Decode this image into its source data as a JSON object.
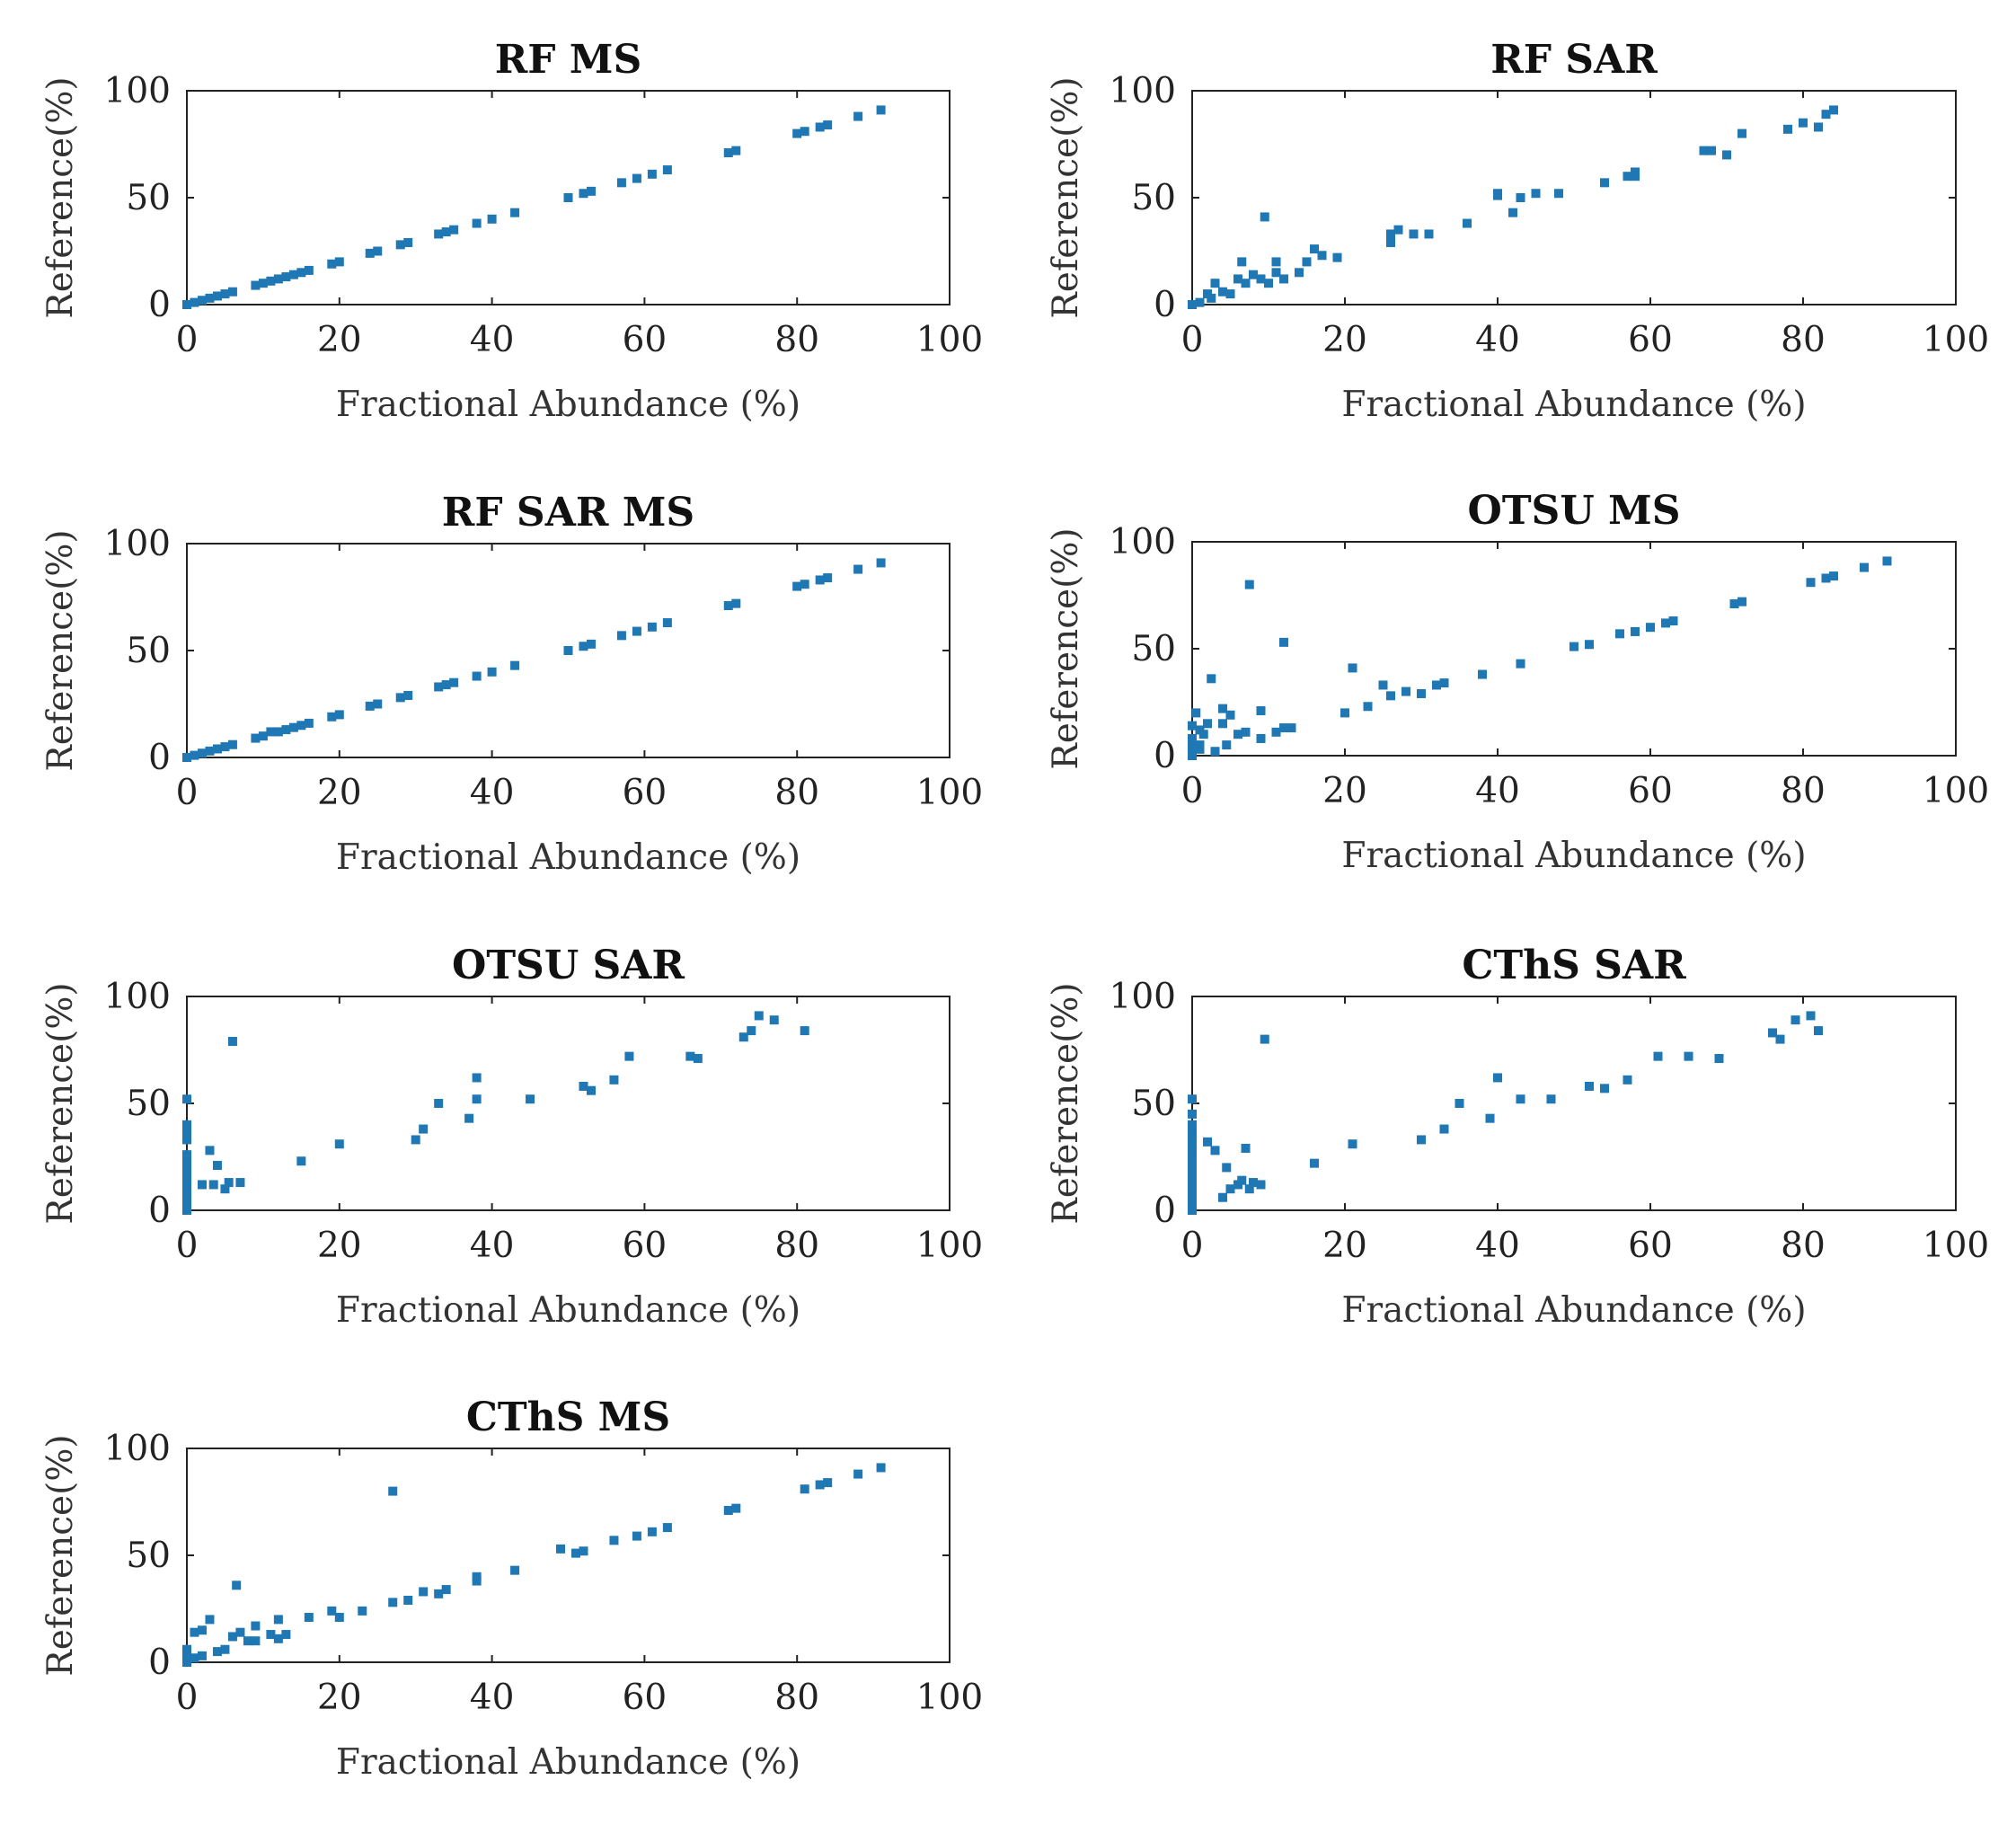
{
  "figure": {
    "marker_color": "#1f77b4"
  },
  "chart_data": [
    {
      "type": "scatter",
      "title": "RF MS",
      "xlabel": "Fractional Abundance (%)",
      "ylabel": "Reference(%)",
      "xlim": [
        0,
        100
      ],
      "ylim": [
        0,
        100
      ],
      "xticks": [
        "0",
        "20",
        "40",
        "60",
        "80",
        "100"
      ],
      "yticks": [
        "0",
        "50",
        "100"
      ],
      "x": [
        0,
        1,
        2,
        3,
        4,
        5,
        6,
        9,
        10,
        11,
        12,
        13,
        14,
        15,
        16,
        19,
        20,
        24,
        25,
        28,
        29,
        33,
        34,
        35,
        38,
        40,
        43,
        50,
        52,
        53,
        57,
        59,
        61,
        63,
        71,
        72,
        80,
        81,
        83,
        84,
        88,
        91
      ],
      "y": [
        0,
        1,
        2,
        3,
        4,
        5,
        6,
        9,
        10,
        11,
        12,
        13,
        14,
        15,
        16,
        19,
        20,
        24,
        25,
        28,
        29,
        33,
        34,
        35,
        38,
        40,
        43,
        50,
        52,
        53,
        57,
        59,
        61,
        63,
        71,
        72,
        80,
        81,
        83,
        84,
        88,
        91
      ]
    },
    {
      "type": "scatter",
      "title": "RF SAR",
      "xlabel": "Fractional Abundance (%)",
      "ylabel": "Reference(%)",
      "xlim": [
        0,
        100
      ],
      "ylim": [
        0,
        100
      ],
      "xticks": [
        "0",
        "20",
        "40",
        "60",
        "80",
        "100"
      ],
      "yticks": [
        "0",
        "50",
        "100"
      ],
      "x": [
        0,
        1,
        2,
        2.5,
        3,
        4,
        5,
        6,
        6.5,
        7,
        8,
        9,
        9.5,
        10,
        11,
        11,
        12,
        14,
        15,
        16,
        17,
        19,
        26,
        26,
        27,
        29,
        31,
        36,
        40,
        40,
        42,
        43,
        45,
        48,
        54,
        57,
        58,
        58,
        67,
        68,
        70,
        72,
        78,
        80,
        82,
        83,
        84
      ],
      "y": [
        0,
        1,
        5,
        3,
        10,
        6,
        5,
        12,
        20,
        10,
        14,
        12,
        41,
        10,
        15,
        20,
        12,
        15,
        20,
        26,
        23,
        22,
        33,
        29,
        35,
        33,
        33,
        38,
        52,
        51,
        43,
        50,
        52,
        52,
        57,
        60,
        62,
        60,
        72,
        72,
        70,
        80,
        82,
        85,
        83,
        89,
        91
      ]
    },
    {
      "type": "scatter",
      "title": "RF SAR MS",
      "xlabel": "Fractional Abundance (%)",
      "ylabel": "Reference(%)",
      "xlim": [
        0,
        100
      ],
      "ylim": [
        0,
        100
      ],
      "xticks": [
        "0",
        "20",
        "40",
        "60",
        "80",
        "100"
      ],
      "yticks": [
        "0",
        "50",
        "100"
      ],
      "x": [
        0,
        1,
        2,
        3,
        4,
        5,
        6,
        9,
        10,
        11,
        12,
        13,
        14,
        15,
        16,
        19,
        20,
        24,
        25,
        28,
        29,
        33,
        34,
        35,
        38,
        40,
        43,
        50,
        52,
        53,
        57,
        59,
        61,
        63,
        71,
        72,
        80,
        81,
        83,
        84,
        88,
        91
      ],
      "y": [
        0,
        1,
        2,
        3,
        4,
        5,
        6,
        9,
        10,
        12,
        12,
        13,
        14,
        15,
        16,
        19,
        20,
        24,
        25,
        28,
        29,
        33,
        34,
        35,
        38,
        40,
        43,
        50,
        52,
        53,
        57,
        59,
        61,
        63,
        71,
        72,
        80,
        81,
        83,
        84,
        88,
        91
      ]
    },
    {
      "type": "scatter",
      "title": "OTSU MS",
      "xlabel": "Fractional Abundance (%)",
      "ylabel": "Reference(%)",
      "xlim": [
        0,
        100
      ],
      "ylim": [
        0,
        100
      ],
      "xticks": [
        "0",
        "20",
        "40",
        "60",
        "80",
        "100"
      ],
      "yticks": [
        "0",
        "50",
        "100"
      ],
      "x": [
        0,
        0,
        0,
        0,
        0,
        0.5,
        1,
        1,
        1,
        1.5,
        2,
        2.5,
        3,
        4,
        4,
        4.5,
        5,
        6,
        7,
        7.5,
        9,
        9,
        11,
        12,
        12,
        13,
        20,
        21,
        23,
        25,
        26,
        28,
        30,
        32,
        33,
        38,
        43,
        50,
        52,
        56,
        58,
        60,
        62,
        63,
        71,
        72,
        81,
        83,
        84,
        88,
        91
      ],
      "y": [
        0,
        2,
        4,
        8,
        14,
        20,
        5,
        12,
        3,
        10,
        15,
        36,
        2,
        22,
        15,
        5,
        19,
        10,
        11,
        80,
        21,
        8,
        11,
        13,
        53,
        13,
        20,
        41,
        23,
        33,
        28,
        30,
        29,
        33,
        34,
        38,
        43,
        51,
        52,
        57,
        58,
        60,
        62,
        63,
        71,
        72,
        81,
        83,
        84,
        88,
        91
      ]
    },
    {
      "type": "scatter",
      "title": "OTSU SAR",
      "xlabel": "Fractional Abundance (%)",
      "ylabel": "Reference(%)",
      "xlim": [
        0,
        100
      ],
      "ylim": [
        0,
        100
      ],
      "xticks": [
        "0",
        "20",
        "40",
        "60",
        "80",
        "100"
      ],
      "yticks": [
        "0",
        "50",
        "100"
      ],
      "x": [
        0,
        0,
        0,
        0,
        0,
        0,
        0,
        0,
        0,
        0,
        0,
        0,
        0,
        0,
        0,
        0,
        2,
        3,
        3.5,
        4,
        5,
        5.5,
        6,
        7,
        15,
        20,
        30,
        31,
        33,
        37,
        38,
        38,
        45,
        52,
        53,
        56,
        58,
        66,
        67,
        73,
        74,
        75,
        77,
        81
      ],
      "y": [
        0,
        2,
        5,
        8,
        11,
        14,
        17,
        20,
        23,
        26,
        33,
        36,
        40,
        52,
        10,
        18,
        12,
        28,
        12,
        21,
        10,
        13,
        79,
        13,
        23,
        31,
        33,
        38,
        50,
        43,
        52,
        62,
        52,
        58,
        56,
        61,
        72,
        72,
        71,
        81,
        84,
        91,
        89,
        84
      ]
    },
    {
      "type": "scatter",
      "title": "CThS SAR",
      "xlabel": "Fractional Abundance (%)",
      "ylabel": "Reference(%)",
      "xlim": [
        0,
        100
      ],
      "ylim": [
        0,
        100
      ],
      "xticks": [
        "0",
        "20",
        "40",
        "60",
        "80",
        "100"
      ],
      "yticks": [
        "0",
        "50",
        "100"
      ],
      "x": [
        0,
        0,
        0,
        0,
        0,
        0,
        0,
        0,
        0,
        0,
        0,
        0,
        0,
        0,
        0,
        0,
        2,
        3,
        4,
        4.5,
        5,
        6,
        6.5,
        7,
        7.5,
        8,
        9,
        9.5,
        16,
        21,
        30,
        33,
        35,
        39,
        40,
        43,
        47,
        52,
        54,
        57,
        61,
        65,
        69,
        76,
        77,
        79,
        81,
        82
      ],
      "y": [
        0,
        3,
        6,
        9,
        12,
        15,
        18,
        21,
        24,
        27,
        33,
        37,
        40,
        52,
        30,
        45,
        32,
        28,
        6,
        20,
        10,
        12,
        14,
        29,
        10,
        13,
        12,
        80,
        22,
        31,
        33,
        38,
        50,
        43,
        62,
        52,
        52,
        58,
        57,
        61,
        72,
        72,
        71,
        83,
        80,
        89,
        91,
        84
      ]
    },
    {
      "type": "scatter",
      "title": "CThS MS",
      "xlabel": "Fractional Abundance (%)",
      "ylabel": "Reference(%)",
      "xlim": [
        0,
        100
      ],
      "ylim": [
        0,
        100
      ],
      "xticks": [
        "0",
        "20",
        "40",
        "60",
        "80",
        "100"
      ],
      "yticks": [
        "0",
        "50",
        "100"
      ],
      "x": [
        0,
        0,
        0,
        1,
        1,
        2,
        2,
        3,
        4,
        5,
        6,
        6.5,
        7,
        8,
        9,
        9,
        11,
        12,
        12,
        13,
        16,
        19,
        20,
        23,
        27,
        27,
        29,
        31,
        33,
        34,
        38,
        38,
        43,
        49,
        51,
        52,
        56,
        59,
        61,
        63,
        71,
        72,
        81,
        83,
        84,
        88,
        91
      ],
      "y": [
        0,
        3,
        6,
        2,
        14,
        3,
        15,
        20,
        5,
        6,
        12,
        36,
        14,
        10,
        17,
        10,
        13,
        11,
        20,
        13,
        21,
        24,
        21,
        24,
        80,
        28,
        29,
        33,
        32,
        34,
        38,
        40,
        43,
        53,
        51,
        52,
        57,
        59,
        61,
        63,
        71,
        72,
        81,
        83,
        84,
        88,
        91
      ]
    }
  ]
}
